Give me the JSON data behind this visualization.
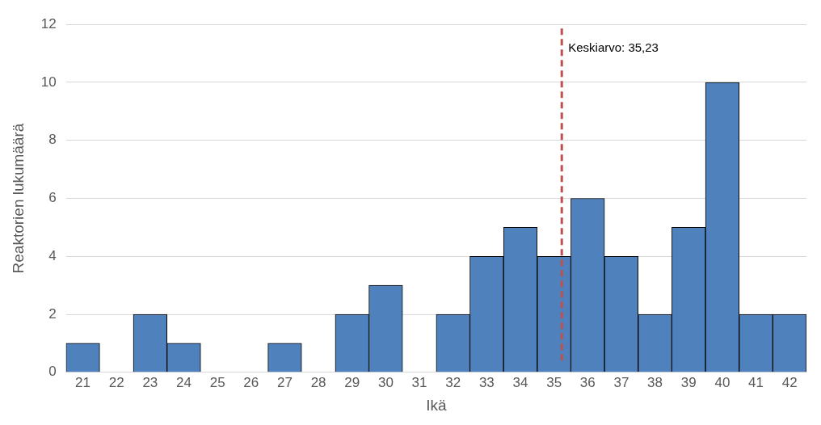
{
  "chart_data": {
    "type": "histogram",
    "xlabel": "Ikä",
    "ylabel": "Reaktorien lukumäärä",
    "bins": [
      20.5,
      21.5,
      22.5,
      23.5,
      24.5,
      25.5,
      26.5,
      27.5,
      28.5,
      29.5,
      30.5,
      31.5,
      32.5,
      33.5,
      34.5,
      35.5,
      36.5,
      37.5,
      38.5,
      39.5,
      40.5,
      41.5,
      42.5
    ],
    "values": [
      1,
      0,
      2,
      1,
      0,
      0,
      1,
      0,
      2,
      3,
      0,
      2,
      4,
      5,
      4,
      6,
      4,
      2,
      5,
      10,
      2,
      2
    ],
    "color": "#4f81bd",
    "xlim": [
      20.5,
      42.5
    ],
    "xticks": [
      21,
      22,
      23,
      24,
      25,
      26,
      27,
      28,
      29,
      30,
      31,
      32,
      33,
      34,
      35,
      36,
      37,
      38,
      39,
      40,
      41,
      42
    ],
    "ylim": [
      0,
      12
    ],
    "yticks": [
      0,
      2,
      4,
      6,
      8,
      10,
      12
    ],
    "grid": "y",
    "legend": false,
    "ref_lines": [
      {
        "axis": "x",
        "value": 35.23,
        "label": "Keskiarvo: 35,23",
        "color": "#c0504d",
        "line_style": "dashed"
      }
    ]
  }
}
